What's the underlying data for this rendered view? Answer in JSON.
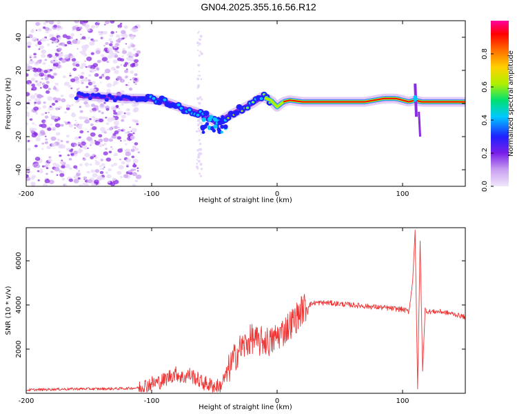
{
  "page": {
    "title": "GN04.2025.355.16.56.R12"
  },
  "colors": {
    "snr_line": "#ee3333",
    "colormap": [
      "#e8d8f8",
      "#c9a0f0",
      "#8a2be2",
      "#2020ff",
      "#00c8ff",
      "#00e070",
      "#b0f000",
      "#ffd000",
      "#ff7000",
      "#ff0000",
      "#ff00a0"
    ]
  },
  "chart_data": [
    {
      "type": "heatmap",
      "name": "spectrogram",
      "xlabel": "Height of straight line (km)",
      "ylabel": "Frequency (Hz)",
      "xlim": [
        -200,
        150
      ],
      "ylim": [
        -50,
        50
      ],
      "xticks": [
        -200,
        -100,
        0,
        100
      ],
      "yticks": [
        -40,
        -20,
        0,
        20,
        40
      ],
      "colorbar": {
        "label": "Normalized spectral amplitude",
        "range": [
          0,
          1
        ],
        "ticks": [
          "0.0",
          "0.2",
          "0.4",
          "0.6",
          "0.8"
        ]
      },
      "ridge": {
        "x": [
          -160,
          -140,
          -120,
          -105,
          -95,
          -85,
          -75,
          -65,
          -55,
          -48,
          -40,
          -30,
          -20,
          -12,
          -5,
          0,
          5,
          10,
          20,
          30,
          50,
          70,
          85,
          95,
          105,
          110,
          115,
          130,
          150
        ],
        "y": [
          5,
          4,
          3,
          3,
          2,
          0,
          -3,
          -5,
          -8,
          -12,
          -8,
          -4,
          0,
          4,
          2,
          -2,
          1,
          2,
          1,
          1,
          1,
          1,
          3,
          3,
          1,
          2,
          1,
          1,
          1
        ]
      }
    },
    {
      "type": "line",
      "name": "snr",
      "xlabel": "Height of straight line (km)",
      "ylabel": "SNR (10 * v/v)",
      "xlim": [
        -200,
        150
      ],
      "ylim": [
        0,
        7500
      ],
      "xticks": [
        -200,
        -100,
        0,
        100
      ],
      "yticks": [
        2000,
        4000,
        6000
      ],
      "series": [
        {
          "name": "SNR",
          "x": [
            -200,
            -180,
            -160,
            -140,
            -120,
            -110,
            -100,
            -95,
            -90,
            -85,
            -80,
            -75,
            -70,
            -65,
            -60,
            -55,
            -50,
            -45,
            -40,
            -35,
            -30,
            -25,
            -20,
            -15,
            -10,
            -5,
            0,
            5,
            10,
            15,
            20,
            25,
            30,
            40,
            50,
            60,
            70,
            80,
            90,
            100,
            105,
            108,
            110,
            112,
            114,
            116,
            118,
            120,
            130,
            140,
            150
          ],
          "y": [
            150,
            180,
            200,
            200,
            220,
            250,
            450,
            500,
            600,
            800,
            900,
            700,
            850,
            700,
            500,
            400,
            300,
            350,
            900,
            1500,
            2000,
            2200,
            2500,
            2300,
            2400,
            2300,
            2600,
            2800,
            3100,
            3400,
            3800,
            4000,
            4100,
            4100,
            4050,
            4000,
            3950,
            3900,
            3850,
            3800,
            3700,
            5000,
            7400,
            200,
            6900,
            1000,
            3800,
            3700,
            3700,
            3600,
            3450
          ]
        }
      ]
    }
  ]
}
